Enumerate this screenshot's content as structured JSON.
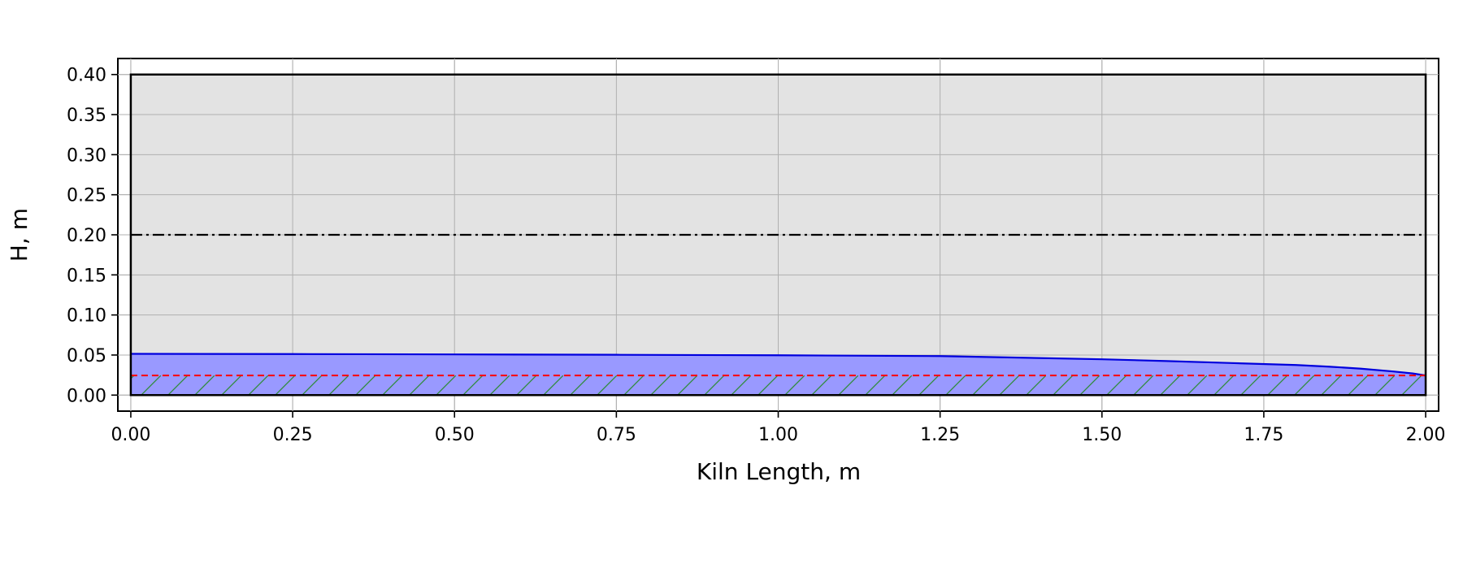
{
  "chart_data": {
    "type": "area",
    "title": "",
    "xlabel": "Kiln Length, m",
    "ylabel": "H, m",
    "xlim": [
      -0.02,
      2.02
    ],
    "ylim": [
      -0.02,
      0.42
    ],
    "xticks": [
      "0.00",
      "0.25",
      "0.50",
      "0.75",
      "1.00",
      "1.25",
      "1.50",
      "1.75",
      "2.00"
    ],
    "yticks": [
      "0.00",
      "0.05",
      "0.10",
      "0.15",
      "0.20",
      "0.25",
      "0.30",
      "0.35",
      "0.40"
    ],
    "grid": true,
    "kiln": {
      "length": 2.0,
      "diameter": 0.4,
      "centerline": 0.2
    },
    "bed_profile": {
      "x": [
        0.0,
        0.25,
        0.5,
        0.75,
        1.0,
        1.25,
        1.5,
        1.6,
        1.7,
        1.8,
        1.85,
        1.9,
        1.95,
        1.98,
        2.0
      ],
      "y": [
        0.0515,
        0.0512,
        0.0508,
        0.0503,
        0.0497,
        0.0487,
        0.0447,
        0.0425,
        0.04,
        0.0375,
        0.0355,
        0.033,
        0.0295,
        0.027,
        0.0245
      ]
    },
    "dam_height": 0.0245,
    "colors": {
      "kiln_fill": "#e3e3e3",
      "bed_fill": "#9999ff",
      "bed_line": "#0000dd",
      "dam_line": "#ff0000",
      "hatch": "#2e8b3a",
      "grid": "#b0b0b0"
    }
  }
}
